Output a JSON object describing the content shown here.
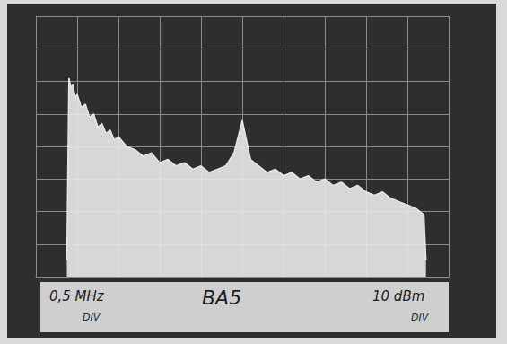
{
  "chart_data": {
    "type": "area",
    "x": [
      0.75,
      0.8,
      0.85,
      0.9,
      0.95,
      1.0,
      1.1,
      1.2,
      1.3,
      1.4,
      1.5,
      1.6,
      1.7,
      1.8,
      1.9,
      2.0,
      2.2,
      2.4,
      2.6,
      2.8,
      3.0,
      3.2,
      3.4,
      3.6,
      3.8,
      4.0,
      4.2,
      4.4,
      4.6,
      4.8,
      4.9,
      5.0,
      5.1,
      5.2,
      5.4,
      5.6,
      5.8,
      6.0,
      6.2,
      6.4,
      6.6,
      6.8,
      7.0,
      7.2,
      7.4,
      7.6,
      7.8,
      8.0,
      8.2,
      8.4,
      8.6,
      8.8,
      9.0,
      9.2,
      9.4,
      9.45
    ],
    "values": [
      0.5,
      6.1,
      5.8,
      5.9,
      5.5,
      5.6,
      5.2,
      5.3,
      4.9,
      5.0,
      4.6,
      4.7,
      4.4,
      4.5,
      4.2,
      4.3,
      4.0,
      3.9,
      3.7,
      3.8,
      3.5,
      3.6,
      3.4,
      3.5,
      3.3,
      3.4,
      3.2,
      3.3,
      3.4,
      3.8,
      4.3,
      4.8,
      4.2,
      3.6,
      3.4,
      3.2,
      3.3,
      3.1,
      3.2,
      3.0,
      3.1,
      2.9,
      3.0,
      2.8,
      2.9,
      2.7,
      2.8,
      2.6,
      2.5,
      2.6,
      2.4,
      2.3,
      2.2,
      2.1,
      1.9,
      0.5
    ],
    "color": "#e6e6e6",
    "xlim": [
      0,
      10
    ],
    "xticks": [
      0,
      1,
      2,
      3,
      4,
      5,
      6,
      7,
      8,
      9,
      10
    ],
    "ylim": [
      0,
      8
    ],
    "yticks": [
      0,
      1,
      2,
      3,
      4,
      5,
      6,
      7,
      8
    ],
    "grid": true,
    "tick_labels": false,
    "annotations": [
      "0,5 MHz",
      "DIV",
      "BA5",
      "10 dBm",
      "DIV"
    ]
  }
}
